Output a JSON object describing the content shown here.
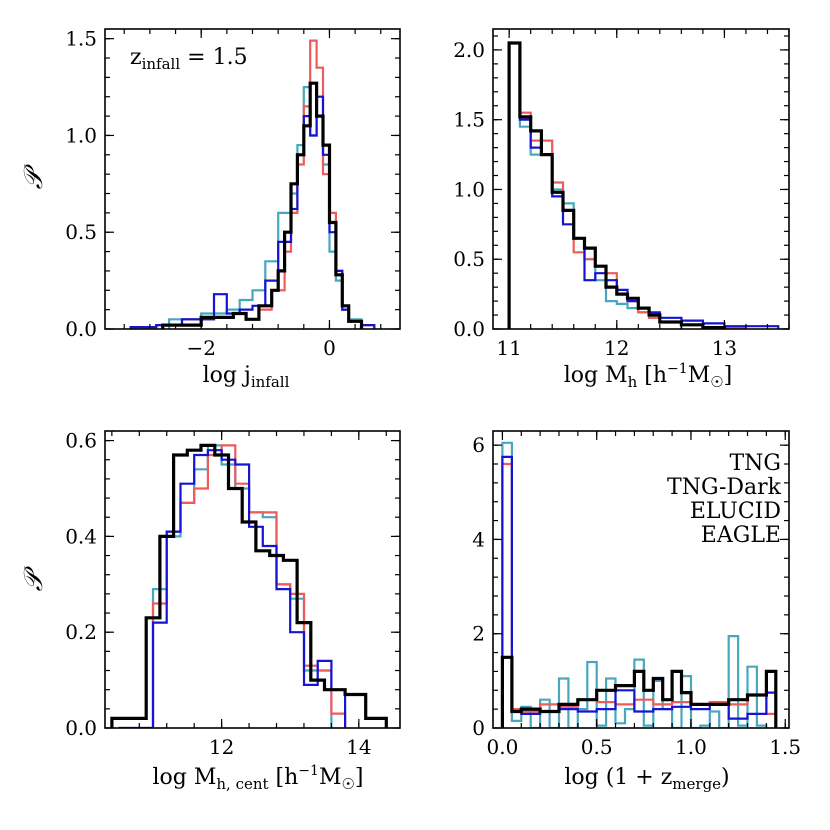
{
  "colors": {
    "TNG": "#ef5a5a",
    "TNG-Dark": "#1414d2",
    "ELUCID": "#000000",
    "EAGLE": "#47a8bd"
  },
  "legend": [
    "TNG",
    "TNG-Dark",
    "ELUCID",
    "EAGLE"
  ],
  "ylabel": "𝒫",
  "chart_data": [
    {
      "id": "jinfall",
      "type": "histogram-step",
      "xlabel": "log j_infall",
      "ylabel": "𝒫",
      "xlim": [
        -3.5,
        1.1
      ],
      "ylim": [
        0,
        1.55
      ],
      "xticks": [
        -2,
        0
      ],
      "xticklabels": [
        "−2",
        "0"
      ],
      "yticks": [
        0.0,
        0.5,
        1.0,
        1.5
      ],
      "yticklabels": [
        "0.0",
        "0.5",
        "1.0",
        "1.5"
      ],
      "annotation": "z_infall = 1.5",
      "series": [
        {
          "name": "TNG",
          "edges": [
            -3.1,
            -2.7,
            -2.3,
            -1.8,
            -1.5,
            -1.3,
            -1.1,
            -0.9,
            -0.7,
            -0.6,
            -0.5,
            -0.4,
            -0.3,
            -0.2,
            -0.1,
            0.0,
            0.1,
            0.2,
            0.3,
            0.5,
            0.7
          ],
          "values": [
            0.01,
            0.02,
            0.05,
            0.06,
            0.08,
            0.05,
            0.1,
            0.2,
            0.4,
            0.6,
            0.85,
            1.15,
            1.49,
            1.35,
            0.8,
            0.6,
            0.3,
            0.1,
            0.04,
            0.02
          ]
        },
        {
          "name": "TNG-Dark",
          "edges": [
            -3.1,
            -2.7,
            -2.3,
            -1.8,
            -1.6,
            -1.4,
            -1.2,
            -1.0,
            -0.8,
            -0.6,
            -0.5,
            -0.4,
            -0.3,
            -0.2,
            -0.1,
            0.0,
            0.1,
            0.2,
            0.3,
            0.5,
            0.7
          ],
          "values": [
            0.01,
            0.02,
            0.05,
            0.18,
            0.08,
            0.1,
            0.12,
            0.25,
            0.45,
            0.62,
            0.9,
            1.1,
            1.0,
            1.2,
            0.9,
            0.5,
            0.3,
            0.1,
            0.04,
            0.02
          ]
        },
        {
          "name": "ELUCID",
          "edges": [
            -2.6,
            -2.0,
            -1.7,
            -1.5,
            -1.3,
            -1.1,
            -0.9,
            -0.8,
            -0.7,
            -0.6,
            -0.5,
            -0.4,
            -0.3,
            -0.2,
            -0.1,
            0.0,
            0.1,
            0.2,
            0.3,
            0.5
          ],
          "values": [
            0.02,
            0.06,
            0.06,
            0.08,
            0.05,
            0.12,
            0.2,
            0.3,
            0.5,
            0.75,
            0.9,
            1.05,
            1.27,
            1.1,
            0.95,
            0.55,
            0.28,
            0.12,
            0.04
          ]
        },
        {
          "name": "EAGLE",
          "edges": [
            -2.5,
            -2.0,
            -1.6,
            -1.4,
            -1.2,
            -1.0,
            -0.8,
            -0.6,
            -0.5,
            -0.4,
            -0.3,
            -0.2,
            -0.1,
            0.0,
            0.1,
            0.2,
            0.3,
            0.5
          ],
          "values": [
            0.05,
            0.08,
            0.1,
            0.15,
            0.2,
            0.35,
            0.6,
            0.7,
            0.95,
            1.25,
            1.0,
            1.1,
            0.85,
            0.4,
            0.25,
            0.1,
            0.05
          ]
        }
      ]
    },
    {
      "id": "Mh",
      "type": "histogram-step",
      "xlabel": "log M_h [h⁻¹M☉]",
      "ylabel": "",
      "xlim": [
        10.85,
        13.6
      ],
      "ylim": [
        0,
        2.15
      ],
      "xticks": [
        11,
        12,
        13
      ],
      "xticklabels": [
        "11",
        "12",
        "13"
      ],
      "yticks": [
        0.0,
        0.5,
        1.0,
        1.5,
        2.0
      ],
      "yticklabels": [
        "0.0",
        "0.5",
        "1.0",
        "1.5",
        "2.0"
      ],
      "series": [
        {
          "name": "TNG",
          "edges": [
            11.0,
            11.1,
            11.2,
            11.3,
            11.4,
            11.5,
            11.6,
            11.7,
            11.8,
            11.9,
            12.0,
            12.1,
            12.2,
            12.3,
            12.4,
            12.6,
            12.8,
            13.0,
            13.2
          ],
          "values": [
            2.05,
            1.55,
            1.35,
            1.35,
            1.05,
            0.85,
            0.55,
            0.5,
            0.45,
            0.4,
            0.25,
            0.2,
            0.12,
            0.08,
            0.05,
            0.03,
            0.01,
            0.01
          ]
        },
        {
          "name": "TNG-Dark",
          "edges": [
            11.0,
            11.1,
            11.2,
            11.3,
            11.4,
            11.5,
            11.6,
            11.7,
            11.8,
            11.9,
            12.0,
            12.1,
            12.2,
            12.3,
            12.4,
            12.6,
            12.8,
            13.0,
            13.2,
            13.5
          ],
          "values": [
            2.05,
            1.5,
            1.3,
            1.25,
            0.95,
            0.75,
            0.65,
            0.35,
            0.4,
            0.35,
            0.28,
            0.2,
            0.15,
            0.12,
            0.08,
            0.06,
            0.04,
            0.02,
            0.02
          ]
        },
        {
          "name": "ELUCID",
          "edges": [
            11.0,
            11.1,
            11.2,
            11.3,
            11.4,
            11.5,
            11.6,
            11.7,
            11.8,
            11.9,
            12.0,
            12.1,
            12.2,
            12.3,
            12.4,
            12.6,
            12.8,
            13.0
          ],
          "values": [
            2.05,
            1.52,
            1.42,
            1.25,
            0.98,
            0.85,
            0.65,
            0.58,
            0.45,
            0.3,
            0.25,
            0.22,
            0.15,
            0.1,
            0.05,
            0.03,
            0.01
          ]
        },
        {
          "name": "EAGLE",
          "edges": [
            11.0,
            11.1,
            11.2,
            11.3,
            11.4,
            11.5,
            11.6,
            11.7,
            11.8,
            11.9,
            12.0,
            12.1,
            12.2,
            12.3,
            12.4,
            12.6
          ],
          "values": [
            2.05,
            1.45,
            1.25,
            1.25,
            1.0,
            0.9,
            0.65,
            0.5,
            0.35,
            0.2,
            0.18,
            0.15,
            0.12,
            0.08,
            0.05
          ]
        }
      ]
    },
    {
      "id": "Mhcent",
      "type": "histogram-step",
      "xlabel": "log M_h, cent [h⁻¹M☉]",
      "ylabel": "𝒫",
      "xlim": [
        10.3,
        14.6
      ],
      "ylim": [
        0,
        0.62
      ],
      "xticks": [
        12,
        14
      ],
      "xticklabels": [
        "12",
        "14"
      ],
      "yticks": [
        0.0,
        0.2,
        0.4,
        0.6
      ],
      "yticklabels": [
        "0.0",
        "0.2",
        "0.4",
        "0.6"
      ],
      "series": [
        {
          "name": "TNG",
          "edges": [
            10.5,
            11.0,
            11.2,
            11.4,
            11.6,
            11.8,
            12.0,
            12.2,
            12.4,
            12.6,
            12.8,
            13.0,
            13.2,
            13.4,
            13.6,
            13.8
          ],
          "values": [
            0.0,
            0.26,
            0.41,
            0.47,
            0.5,
            0.57,
            0.59,
            0.51,
            0.45,
            0.45,
            0.3,
            0.28,
            0.13,
            0.12,
            0.03
          ]
        },
        {
          "name": "TNG-Dark",
          "edges": [
            10.5,
            11.0,
            11.2,
            11.4,
            11.6,
            11.8,
            12.0,
            12.2,
            12.4,
            12.6,
            12.8,
            13.0,
            13.2,
            13.4,
            13.6,
            13.8
          ],
          "values": [
            0.0,
            0.22,
            0.41,
            0.51,
            0.57,
            0.58,
            0.56,
            0.55,
            0.42,
            0.38,
            0.29,
            0.2,
            0.09,
            0.14,
            0.08
          ]
        },
        {
          "name": "ELUCID",
          "edges": [
            10.4,
            10.9,
            11.1,
            11.3,
            11.5,
            11.7,
            11.9,
            12.1,
            12.3,
            12.5,
            12.7,
            12.9,
            13.1,
            13.3,
            13.5,
            13.8,
            14.1,
            14.4
          ],
          "values": [
            0.02,
            0.23,
            0.4,
            0.57,
            0.58,
            0.59,
            0.57,
            0.5,
            0.43,
            0.37,
            0.36,
            0.35,
            0.22,
            0.1,
            0.08,
            0.07,
            0.02
          ]
        },
        {
          "name": "EAGLE",
          "edges": [
            11.0,
            11.2,
            11.4,
            11.6,
            11.8,
            12.0,
            12.2,
            12.4,
            12.6,
            12.8,
            13.0,
            13.2,
            13.4,
            13.6
          ],
          "values": [
            0.29,
            0.4,
            0.47,
            0.54,
            0.59,
            0.55,
            0.5,
            0.45,
            0.44,
            0.3,
            0.27,
            0.12,
            0.12
          ]
        }
      ]
    },
    {
      "id": "zmerge",
      "type": "histogram-step",
      "xlabel": "log (1 + z_merge)",
      "ylabel": "",
      "xlim": [
        -0.05,
        1.52
      ],
      "ylim": [
        0,
        6.3
      ],
      "xticks": [
        0.0,
        0.5,
        1.0,
        1.5
      ],
      "xticklabels": [
        "0.0",
        "0.5",
        "1.0",
        "1.5"
      ],
      "yticks": [
        0,
        2,
        4,
        6
      ],
      "yticklabels": [
        "0",
        "2",
        "4",
        "6"
      ],
      "series": [
        {
          "name": "TNG",
          "edges": [
            0.0,
            0.05,
            0.1,
            0.2,
            0.3,
            0.4,
            0.5,
            0.6,
            0.7,
            0.8,
            0.9,
            1.0,
            1.1,
            1.2,
            1.3,
            1.4,
            1.45
          ],
          "values": [
            5.6,
            0.4,
            0.35,
            0.5,
            0.45,
            0.6,
            0.55,
            0.5,
            0.6,
            0.5,
            0.55,
            0.5,
            0.55,
            0.5,
            0.7,
            0.3
          ]
        },
        {
          "name": "TNG-Dark",
          "edges": [
            0.0,
            0.05,
            0.1,
            0.2,
            0.3,
            0.4,
            0.5,
            0.6,
            0.7,
            0.8,
            0.9,
            1.0,
            1.1,
            1.2,
            1.3,
            1.4,
            1.45
          ],
          "values": [
            5.75,
            0.35,
            0.3,
            0.35,
            0.4,
            0.35,
            0.4,
            0.8,
            0.35,
            0.4,
            0.45,
            0.4,
            0.5,
            0.2,
            0.3,
            0.75
          ]
        },
        {
          "name": "ELUCID",
          "edges": [
            0.0,
            0.05,
            0.1,
            0.2,
            0.3,
            0.4,
            0.5,
            0.6,
            0.7,
            0.75,
            0.8,
            0.85,
            0.9,
            0.95,
            1.0,
            1.1,
            1.2,
            1.3,
            1.4,
            1.45
          ],
          "values": [
            1.5,
            0.35,
            0.4,
            0.35,
            0.5,
            0.6,
            0.8,
            0.9,
            1.2,
            0.8,
            1.05,
            0.6,
            1.2,
            0.75,
            0.5,
            0.5,
            0.6,
            0.7,
            1.2
          ]
        },
        {
          "name": "EAGLE",
          "edges": [
            0.0,
            0.05,
            0.1,
            0.15,
            0.2,
            0.25,
            0.3,
            0.35,
            0.4,
            0.45,
            0.5,
            0.55,
            0.6,
            0.65,
            0.7,
            0.75,
            0.8,
            0.85,
            0.9,
            0.95,
            1.0,
            1.05,
            1.1,
            1.15,
            1.2,
            1.25,
            1.3,
            1.35,
            1.4
          ],
          "values": [
            6.05,
            0.15,
            0.45,
            0.0,
            0.6,
            0.0,
            1.05,
            0.0,
            0.4,
            1.4,
            0.05,
            1.05,
            0.1,
            0.4,
            1.45,
            0.05,
            1.0,
            0.4,
            0.0,
            1.1,
            0.0,
            0.05,
            0.35,
            0.0,
            1.95,
            0.05,
            1.3,
            0.05
          ]
        }
      ]
    }
  ]
}
